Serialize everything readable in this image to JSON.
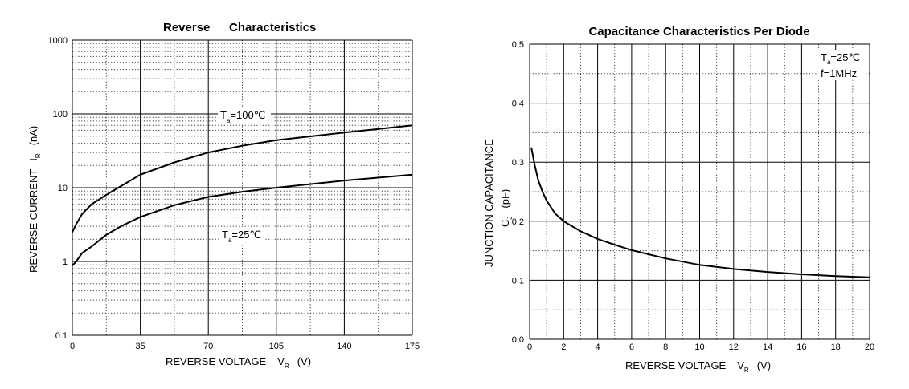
{
  "chart_data": [
    {
      "type": "line",
      "title_parts": [
        "Reverse",
        "Characteristics"
      ],
      "xlabel": {
        "text": "REVERSE VOLTAGE",
        "symbol": "V",
        "sub": "R",
        "unit": "(V)"
      },
      "ylabel": {
        "text": "REVERSE CURRENT",
        "symbol": "I",
        "sub": "R",
        "unit": "(nA)"
      },
      "xlim": [
        0,
        175
      ],
      "ylim": [
        0.1,
        1000
      ],
      "yscale": "log",
      "grid": true,
      "x_ticks": [
        "0",
        "35",
        "70",
        "105",
        "140",
        "175"
      ],
      "y_ticks": [
        "0.1",
        "1",
        "10",
        "100",
        "1000"
      ],
      "series": [
        {
          "name": "Ta=100℃",
          "label": {
            "symbol": "T",
            "sub": "a",
            "rest": "=100℃"
          },
          "x": [
            0,
            2,
            5,
            10,
            17.5,
            25,
            35,
            52.5,
            70,
            87.5,
            105,
            140,
            175
          ],
          "y": [
            2.5,
            3.2,
            4.4,
            6.0,
            8.0,
            10.5,
            15,
            22,
            30,
            37,
            44,
            56,
            70
          ]
        },
        {
          "name": "Ta=25℃",
          "label": {
            "symbol": "T",
            "sub": "a",
            "rest": "=25℃"
          },
          "x": [
            0,
            2,
            5,
            10,
            17.5,
            25,
            35,
            52.5,
            70,
            87.5,
            105,
            140,
            175
          ],
          "y": [
            0.88,
            1.0,
            1.3,
            1.6,
            2.3,
            3.0,
            4.0,
            5.8,
            7.5,
            8.8,
            10,
            12.5,
            15
          ]
        }
      ]
    },
    {
      "type": "line",
      "title": "Capacitance Characteristics Per Diode",
      "xlabel": {
        "text": "REVERSE VOLTAGE",
        "symbol": "V",
        "sub": "R",
        "unit": "(V)"
      },
      "ylabel": {
        "text": "JUNCTION CAPACITANCE",
        "symbol": "C",
        "sub": "J",
        "unit": "(pF)"
      },
      "xlim": [
        0,
        20
      ],
      "ylim": [
        0,
        0.5
      ],
      "grid": true,
      "x_ticks": [
        "0",
        "2",
        "4",
        "6",
        "8",
        "10",
        "12",
        "14",
        "16",
        "18",
        "20"
      ],
      "y_ticks": [
        "0.0",
        "0.1",
        "0.2",
        "0.3",
        "0.4",
        "0.5"
      ],
      "annotation": {
        "symbol": "T",
        "sub": "a",
        "rest": "=25℃",
        "line2": "f=1MHz"
      },
      "series": [
        {
          "x": [
            0.1,
            0.3,
            0.5,
            0.75,
            1,
            1.5,
            2,
            3,
            4,
            5,
            6,
            8,
            10,
            12,
            14,
            16,
            18,
            20
          ],
          "y": [
            0.325,
            0.295,
            0.27,
            0.25,
            0.235,
            0.213,
            0.2,
            0.183,
            0.17,
            0.16,
            0.151,
            0.137,
            0.126,
            0.119,
            0.114,
            0.11,
            0.107,
            0.105
          ]
        }
      ]
    }
  ]
}
